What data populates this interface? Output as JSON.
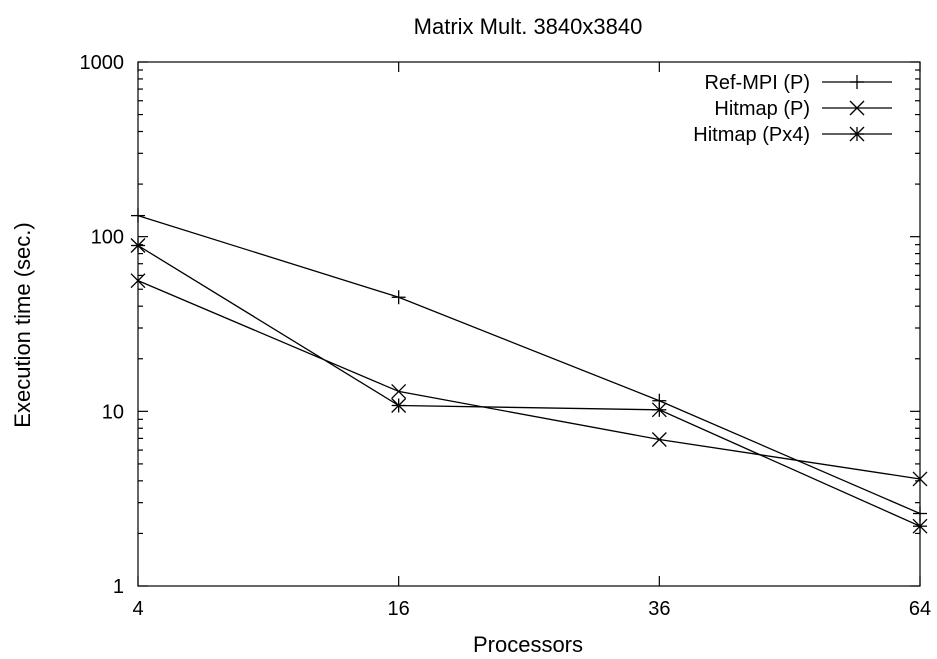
{
  "chart_data": {
    "type": "line",
    "title": "Matrix Mult. 3840x3840",
    "xlabel": "Processors",
    "ylabel": "Execution time (sec.)",
    "x_scale": "categorical",
    "y_scale": "log",
    "ylim": [
      1,
      1000
    ],
    "x": [
      4,
      16,
      36,
      64
    ],
    "x_tick_labels": [
      "4",
      "16",
      "36",
      "64"
    ],
    "y_ticks": [
      1,
      10,
      100,
      1000
    ],
    "y_tick_labels": [
      "1",
      "10",
      "100",
      "1000"
    ],
    "grid": false,
    "legend_position": "top-right",
    "series": [
      {
        "name": "Ref-MPI (P)",
        "marker": "plus",
        "values": [
          132,
          45,
          11.5,
          2.6
        ]
      },
      {
        "name": "Hitmap (P)",
        "marker": "cross",
        "values": [
          56,
          13,
          6.9,
          4.1
        ]
      },
      {
        "name": "Hitmap (Px4)",
        "marker": "star",
        "values": [
          89,
          10.8,
          10.2,
          2.2
        ]
      }
    ],
    "colors": {
      "line": "#000000",
      "background": "#ffffff"
    }
  }
}
